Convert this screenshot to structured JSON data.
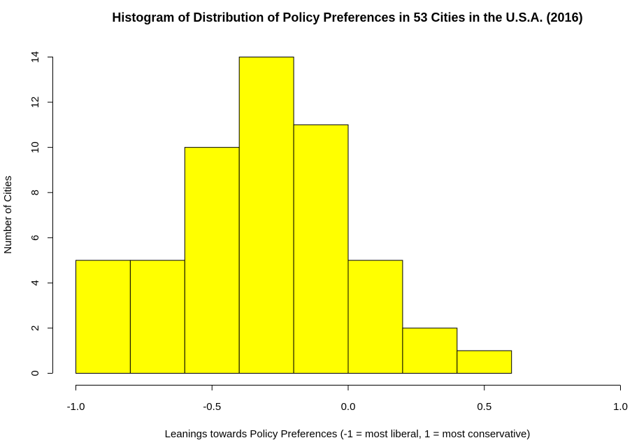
{
  "chart_data": {
    "type": "bar",
    "title": "Histogram of Distribution of Policy Preferences in 53 Cities in the U.S.A. (2016)",
    "xlabel": "Leanings towards Policy Preferences (-1 = most liberal, 1 = most conservative)",
    "ylabel": "Number of Cities",
    "bar_color": "#ffff00",
    "bins": [
      {
        "start": -1.0,
        "end": -0.8,
        "count": 5
      },
      {
        "start": -0.8,
        "end": -0.6,
        "count": 5
      },
      {
        "start": -0.6,
        "end": -0.4,
        "count": 10
      },
      {
        "start": -0.4,
        "end": -0.2,
        "count": 14
      },
      {
        "start": -0.2,
        "end": 0.0,
        "count": 11
      },
      {
        "start": 0.0,
        "end": 0.2,
        "count": 5
      },
      {
        "start": 0.2,
        "end": 0.4,
        "count": 2
      },
      {
        "start": 0.4,
        "end": 0.6,
        "count": 1
      }
    ],
    "xlim": [
      -1.0,
      1.0
    ],
    "ylim": [
      0,
      14
    ],
    "x_ticks": [
      -1.0,
      -0.5,
      0.0,
      0.5,
      1.0
    ],
    "x_tick_labels": [
      "-1.0",
      "-0.5",
      "0.0",
      "0.5",
      "1.0"
    ],
    "y_ticks": [
      0,
      2,
      4,
      6,
      8,
      10,
      12,
      14
    ],
    "y_tick_labels": [
      "0",
      "2",
      "4",
      "6",
      "8",
      "10",
      "12",
      "14"
    ],
    "grid": false,
    "legend": "none"
  }
}
